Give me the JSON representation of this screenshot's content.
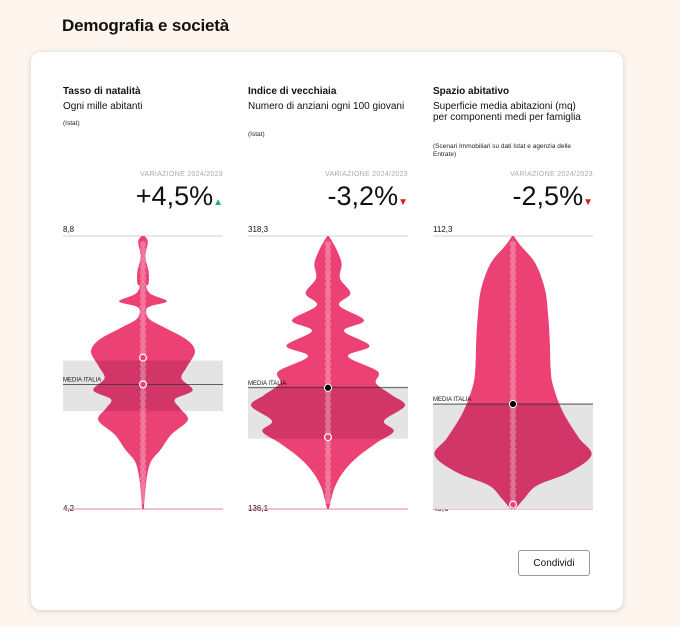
{
  "section_title": "Demografia e società",
  "share_label": "Condividi",
  "colors": {
    "accent": "#ec4174",
    "accent_dark": "#cf3567",
    "band": "#e4e4e4",
    "up": "#27ae60",
    "down": "#e0191f"
  },
  "chart_data": [
    {
      "type": "violin",
      "title": "Tasso di natalità",
      "subtitle": "Ogni mille abitanti",
      "source": "(Istat)",
      "variation_label": "VARIAZIONE 2024/2023",
      "variation_value": "+4,5%",
      "variation_dir": "up",
      "ymax_label": "8,8",
      "ymin_label": "4,2",
      "ylim": [
        4.2,
        8.8
      ],
      "mean_label": "MEDIA ITALIA",
      "mean": 6.3,
      "band": [
        5.85,
        6.7
      ],
      "highlight_points": [
        6.75,
        6.3
      ],
      "profile": [
        [
          8.8,
          0.02
        ],
        [
          8.7,
          0.06
        ],
        [
          8.45,
          0.03
        ],
        [
          8.2,
          0.07
        ],
        [
          8.0,
          0.07
        ],
        [
          7.95,
          0.04
        ],
        [
          7.82,
          0.1
        ],
        [
          7.7,
          0.3
        ],
        [
          7.62,
          0.1
        ],
        [
          7.55,
          0.04
        ],
        [
          7.4,
          0.08
        ],
        [
          7.25,
          0.28
        ],
        [
          7.05,
          0.55
        ],
        [
          6.85,
          0.65
        ],
        [
          6.6,
          0.55
        ],
        [
          6.4,
          0.48
        ],
        [
          6.2,
          0.62
        ],
        [
          6.05,
          0.4
        ],
        [
          5.9,
          0.46
        ],
        [
          5.7,
          0.56
        ],
        [
          5.45,
          0.35
        ],
        [
          5.2,
          0.22
        ],
        [
          5.0,
          0.1
        ],
        [
          4.75,
          0.05
        ],
        [
          4.5,
          0.03
        ],
        [
          4.2,
          0.01
        ]
      ]
    },
    {
      "type": "violin",
      "title": "Indice di vecchiaia",
      "subtitle": "Numero di anziani ogni 100 giovani",
      "source": "(Istat)",
      "variation_label": "VARIAZIONE 2024/2023",
      "variation_value": "-3,2%",
      "variation_dir": "down",
      "ymax_label": "318,3",
      "ymin_label": "136,1",
      "ylim": [
        136.1,
        318.3
      ],
      "mean_label": "MEDIA ITALIA",
      "mean": 217,
      "band": [
        183,
        218
      ],
      "highlight_points": [
        217,
        184
      ],
      "profile": [
        [
          318.3,
          0.01
        ],
        [
          310,
          0.1
        ],
        [
          300,
          0.17
        ],
        [
          290,
          0.15
        ],
        [
          280,
          0.28
        ],
        [
          272,
          0.14
        ],
        [
          262,
          0.45
        ],
        [
          255,
          0.2
        ],
        [
          245,
          0.52
        ],
        [
          238,
          0.25
        ],
        [
          228,
          0.62
        ],
        [
          220,
          0.6
        ],
        [
          212,
          0.8
        ],
        [
          205,
          0.96
        ],
        [
          195,
          0.7
        ],
        [
          188,
          0.82
        ],
        [
          180,
          0.6
        ],
        [
          170,
          0.35
        ],
        [
          160,
          0.18
        ],
        [
          150,
          0.08
        ],
        [
          140,
          0.03
        ],
        [
          136.1,
          0.01
        ]
      ]
    },
    {
      "type": "violin",
      "title": "Spazio abitativo",
      "subtitle": "Superficie media abitazioni (mq) per componenti medi per famiglia",
      "source": "(Scenari Immobiliari su dati Istat e agenzia delle Entrate)",
      "variation_label": "VARIAZIONE 2024/2023",
      "variation_value": "-2,5%",
      "variation_dir": "down",
      "ymax_label": "112,3",
      "ymin_label": "49,6",
      "ylim": [
        49.6,
        112.3
      ],
      "mean_label": "MEDIA ITALIA",
      "mean": 73.7,
      "band": [
        49.6,
        73.7
      ],
      "highlight_points": [
        73.7,
        50.6
      ],
      "profile": [
        [
          112.3,
          0.01
        ],
        [
          110,
          0.1
        ],
        [
          106,
          0.28
        ],
        [
          100,
          0.4
        ],
        [
          94,
          0.44
        ],
        [
          88,
          0.46
        ],
        [
          82,
          0.47
        ],
        [
          78,
          0.5
        ],
        [
          72,
          0.62
        ],
        [
          66,
          0.82
        ],
        [
          62,
          0.98
        ],
        [
          58,
          0.7
        ],
        [
          55,
          0.3
        ],
        [
          52,
          0.14
        ],
        [
          50.5,
          0.07
        ],
        [
          49.6,
          0.02
        ]
      ]
    }
  ]
}
